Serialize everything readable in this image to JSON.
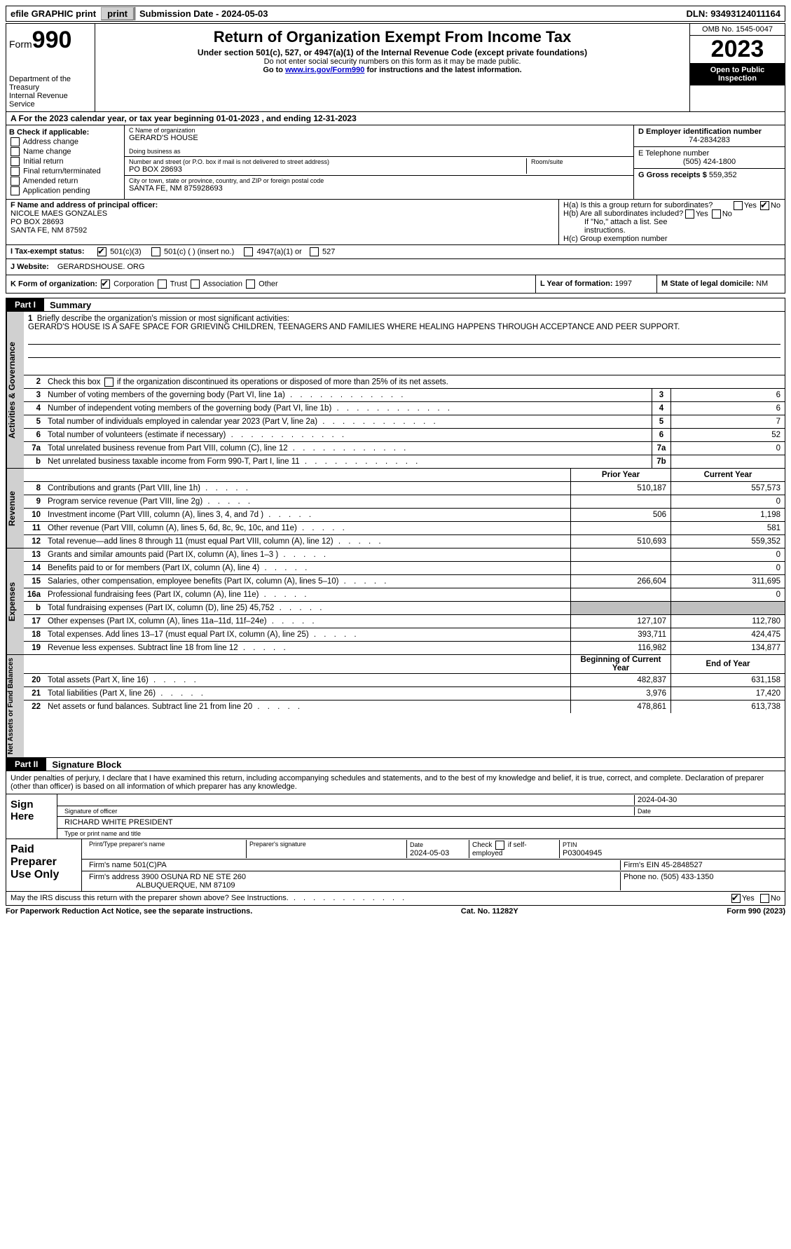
{
  "topbar": {
    "efile_label": "efile GRAPHIC print",
    "submission_label": "Submission Date - 2024-05-03",
    "dln_label": "DLN: 93493124011164"
  },
  "header": {
    "form_word": "Form",
    "form_num": "990",
    "dept": "Department of the Treasury",
    "irs": "Internal Revenue Service",
    "title": "Return of Organization Exempt From Income Tax",
    "subtitle": "Under section 501(c), 527, or 4947(a)(1) of the Internal Revenue Code (except private foundations)",
    "note1": "Do not enter social security numbers on this form as it may be made public.",
    "note2_pre": "Go to ",
    "note2_link": "www.irs.gov/Form990",
    "note2_post": " for instructions and the latest information.",
    "omb": "OMB No. 1545-0047",
    "year": "2023",
    "open": "Open to Public Inspection"
  },
  "sectA": {
    "text": "A For the 2023 calendar year, or tax year beginning 01-01-2023   , and ending 12-31-2023"
  },
  "colB": {
    "hdr": "B Check if applicable:",
    "opts": [
      "Address change",
      "Name change",
      "Initial return",
      "Final return/terminated",
      "Amended return",
      "Application pending"
    ]
  },
  "colC": {
    "name_lbl": "C Name of organization",
    "name": "GERARD'S HOUSE",
    "dba_lbl": "Doing business as",
    "addr_lbl": "Number and street (or P.O. box if mail is not delivered to street address)",
    "room_lbl": "Room/suite",
    "addr": "PO BOX 28693",
    "city_lbl": "City or town, state or province, country, and ZIP or foreign postal code",
    "city": "SANTA FE, NM  875928693"
  },
  "colD": {
    "ein_lbl": "D Employer identification number",
    "ein": "74-2834283",
    "phone_lbl": "E Telephone number",
    "phone": "(505) 424-1800",
    "gross_lbl": "G Gross receipts $ ",
    "gross": "559,352"
  },
  "officer": {
    "lbl": "F  Name and address of principal officer:",
    "name": "NICOLE MAES GONZALES",
    "addr1": "PO BOX 28693",
    "addr2": "SANTA FE, NM  87592"
  },
  "colH": {
    "ha": "H(a)  Is this a group return for subordinates?",
    "hb": "H(b)  Are all subordinates included?",
    "hb_note": "If \"No,\" attach a list. See instructions.",
    "hc": "H(c)  Group exemption number ",
    "yes": "Yes",
    "no": "No"
  },
  "status": {
    "lbl": "I   Tax-exempt status:",
    "o1": "501(c)(3)",
    "o2": "501(c) (  ) (insert no.)",
    "o3": "4947(a)(1) or",
    "o4": "527"
  },
  "website": {
    "lbl": "J  Website: ",
    "val": "GERARDSHOUSE. ORG"
  },
  "formorg": {
    "lbl": "K Form of organization:",
    "o1": "Corporation",
    "o2": "Trust",
    "o3": "Association",
    "o4": "Other",
    "year_lbl": "L Year of formation: ",
    "year": "1997",
    "state_lbl": "M State of legal domicile: ",
    "state": "NM"
  },
  "part1": {
    "label": "Part I",
    "title": "Summary",
    "vtab_gov": "Activities & Governance",
    "vtab_rev": "Revenue",
    "vtab_exp": "Expenses",
    "vtab_net": "Net Assets or Fund Balances",
    "q1": "Briefly describe the organization's mission or most significant activities:",
    "mission": "GERARD'S HOUSE IS A SAFE SPACE FOR GRIEVING CHILDREN, TEENAGERS AND FAMILIES WHERE HEALING HAPPENS THROUGH ACCEPTANCE AND PEER SUPPORT.",
    "q2": "Check this box         if the organization discontinued its operations or disposed of more than 25% of its net assets.",
    "lines_gov": [
      {
        "n": "3",
        "d": "Number of voting members of the governing body (Part VI, line 1a)",
        "box": "3",
        "v": "6"
      },
      {
        "n": "4",
        "d": "Number of independent voting members of the governing body (Part VI, line 1b)",
        "box": "4",
        "v": "6"
      },
      {
        "n": "5",
        "d": "Total number of individuals employed in calendar year 2023 (Part V, line 2a)",
        "box": "5",
        "v": "7"
      },
      {
        "n": "6",
        "d": "Total number of volunteers (estimate if necessary)",
        "box": "6",
        "v": "52"
      },
      {
        "n": "7a",
        "d": "Total unrelated business revenue from Part VIII, column (C), line 12",
        "box": "7a",
        "v": "0"
      },
      {
        "n": "b",
        "d": "Net unrelated business taxable income from Form 990-T, Part I, line 11",
        "box": "7b",
        "v": ""
      }
    ],
    "col_prior": "Prior Year",
    "col_curr": "Current Year",
    "rev": [
      {
        "n": "8",
        "d": "Contributions and grants (Part VIII, line 1h)",
        "p": "510,187",
        "c": "557,573"
      },
      {
        "n": "9",
        "d": "Program service revenue (Part VIII, line 2g)",
        "p": "",
        "c": "0"
      },
      {
        "n": "10",
        "d": "Investment income (Part VIII, column (A), lines 3, 4, and 7d )",
        "p": "506",
        "c": "1,198"
      },
      {
        "n": "11",
        "d": "Other revenue (Part VIII, column (A), lines 5, 6d, 8c, 9c, 10c, and 11e)",
        "p": "",
        "c": "581"
      },
      {
        "n": "12",
        "d": "Total revenue—add lines 8 through 11 (must equal Part VIII, column (A), line 12)",
        "p": "510,693",
        "c": "559,352"
      }
    ],
    "exp": [
      {
        "n": "13",
        "d": "Grants and similar amounts paid (Part IX, column (A), lines 1–3 )",
        "p": "",
        "c": "0"
      },
      {
        "n": "14",
        "d": "Benefits paid to or for members (Part IX, column (A), line 4)",
        "p": "",
        "c": "0"
      },
      {
        "n": "15",
        "d": "Salaries, other compensation, employee benefits (Part IX, column (A), lines 5–10)",
        "p": "266,604",
        "c": "311,695"
      },
      {
        "n": "16a",
        "d": "Professional fundraising fees (Part IX, column (A), line 11e)",
        "p": "",
        "c": "0"
      },
      {
        "n": "b",
        "d": "Total fundraising expenses (Part IX, column (D), line 25) 45,752",
        "p": "GREY",
        "c": "GREY"
      },
      {
        "n": "17",
        "d": "Other expenses (Part IX, column (A), lines 11a–11d, 11f–24e)",
        "p": "127,107",
        "c": "112,780"
      },
      {
        "n": "18",
        "d": "Total expenses. Add lines 13–17 (must equal Part IX, column (A), line 25)",
        "p": "393,711",
        "c": "424,475"
      },
      {
        "n": "19",
        "d": "Revenue less expenses. Subtract line 18 from line 12",
        "p": "116,982",
        "c": "134,877"
      }
    ],
    "col_beg": "Beginning of Current Year",
    "col_end": "End of Year",
    "net": [
      {
        "n": "20",
        "d": "Total assets (Part X, line 16)",
        "p": "482,837",
        "c": "631,158"
      },
      {
        "n": "21",
        "d": "Total liabilities (Part X, line 26)",
        "p": "3,976",
        "c": "17,420"
      },
      {
        "n": "22",
        "d": "Net assets or fund balances. Subtract line 21 from line 20",
        "p": "478,861",
        "c": "613,738"
      }
    ]
  },
  "part2": {
    "label": "Part II",
    "title": "Signature Block",
    "decl": "Under penalties of perjury, I declare that I have examined this return, including accompanying schedules and statements, and to the best of my knowledge and belief, it is true, correct, and complete. Declaration of preparer (other than officer) is based on all information of which preparer has any knowledge.",
    "sign_here": "Sign Here",
    "sig_officer_lbl": "Signature of officer",
    "sig_date_lbl": "Date",
    "sig_date": "2024-04-30",
    "officer_name": "RICHARD WHITE  PRESIDENT",
    "officer_type_lbl": "Type or print name and title",
    "paid_lbl": "Paid Preparer Use Only",
    "prep_name_lbl": "Print/Type preparer's name",
    "prep_sig_lbl": "Preparer's signature",
    "prep_date_lbl": "Date",
    "prep_date": "2024-05-03",
    "self_lbl": "Check         if self-employed",
    "ptin_lbl": "PTIN",
    "ptin": "P03004945",
    "firm_name_lbl": "Firm's name    ",
    "firm_name": "501(C)PA",
    "firm_ein_lbl": "Firm's EIN  ",
    "firm_ein": "45-2848527",
    "firm_addr_lbl": "Firm's address ",
    "firm_addr1": "3900 OSUNA RD NE STE 260",
    "firm_addr2": "ALBUQUERQUE, NM  87109",
    "firm_phone_lbl": "Phone no. ",
    "firm_phone": "(505) 433-1350",
    "discuss": "May the IRS discuss this return with the preparer shown above? See Instructions."
  },
  "footer": {
    "pra": "For Paperwork Reduction Act Notice, see the separate instructions.",
    "cat": "Cat. No. 11282Y",
    "form": "Form 990 (2023)"
  }
}
